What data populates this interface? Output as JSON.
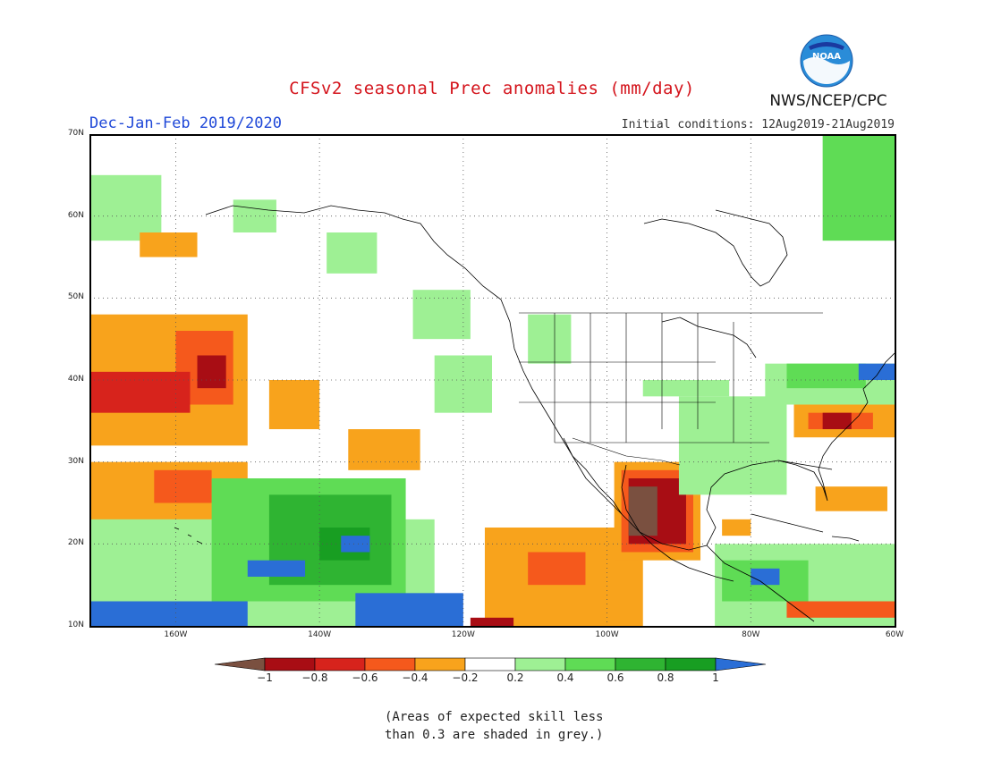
{
  "header": {
    "title": "CFSv2 seasonal Prec anomalies (mm/day)",
    "season": "Dec-Jan-Feb 2019/2020",
    "initial_conditions": "Initial conditions: 12Aug2019-21Aug2019",
    "agency": "NWS/NCEP/CPC",
    "logo_text": "NOAA"
  },
  "map": {
    "lat_range": [
      10,
      70
    ],
    "lon_range": [
      -172,
      -60
    ],
    "lat_labels": [
      "70N",
      "60N",
      "50N",
      "40N",
      "30N",
      "20N",
      "10N"
    ],
    "lon_labels": [
      "160W",
      "140W",
      "120W",
      "100W",
      "80W",
      "60W"
    ],
    "colors": {
      "lt_-1": "#7a5040",
      "-1_-0.8": "#a80d14",
      "-0.8_-0.6": "#d7231c",
      "-0.6_-0.4": "#f5591c",
      "-0.4_-0.2": "#f8a31c",
      "0.2_0.4": "#9ef094",
      "0.4_0.6": "#5fdc55",
      "0.6_0.8": "#2fb432",
      "0.8_1": "#189e22",
      "gt_1": "#2a6ed6"
    },
    "anomaly_regions": [
      {
        "category": "0.2_0.4",
        "lons": [
          -172,
          -162
        ],
        "lats": [
          57,
          65
        ]
      },
      {
        "category": "0.2_0.4",
        "lons": [
          -152,
          -146
        ],
        "lats": [
          58,
          62
        ]
      },
      {
        "category": "0.2_0.4",
        "lons": [
          -139,
          -132
        ],
        "lats": [
          53,
          58
        ]
      },
      {
        "category": "0.2_0.4",
        "lons": [
          -127,
          -119
        ],
        "lats": [
          45,
          51
        ]
      },
      {
        "category": "0.2_0.4",
        "lons": [
          -124,
          -116
        ],
        "lats": [
          36,
          43
        ]
      },
      {
        "category": "0.2_0.4",
        "lons": [
          -111,
          -105
        ],
        "lats": [
          42,
          48
        ]
      },
      {
        "category": "-0.4_-0.2",
        "lons": [
          -165,
          -157
        ],
        "lats": [
          55,
          58
        ]
      },
      {
        "category": "-0.4_-0.2",
        "lons": [
          -172,
          -150
        ],
        "lats": [
          32,
          48
        ]
      },
      {
        "category": "-0.6_-0.4",
        "lons": [
          -160,
          -152
        ],
        "lats": [
          37,
          46
        ]
      },
      {
        "category": "-0.8_-0.6",
        "lons": [
          -172,
          -158
        ],
        "lats": [
          36,
          41
        ]
      },
      {
        "category": "-1_-0.8",
        "lons": [
          -157,
          -153
        ],
        "lats": [
          39,
          43
        ]
      },
      {
        "category": "-0.4_-0.2",
        "lons": [
          -147,
          -140
        ],
        "lats": [
          34,
          40
        ]
      },
      {
        "category": "-0.4_-0.2",
        "lons": [
          -136,
          -126
        ],
        "lats": [
          29,
          34
        ]
      },
      {
        "category": "-0.4_-0.2",
        "lons": [
          -172,
          -150
        ],
        "lats": [
          21,
          30
        ]
      },
      {
        "category": "-0.6_-0.4",
        "lons": [
          -163,
          -155
        ],
        "lats": [
          25,
          29
        ]
      },
      {
        "category": "0.2_0.4",
        "lons": [
          -172,
          -124
        ],
        "lats": [
          10,
          23
        ]
      },
      {
        "category": "0.4_0.6",
        "lons": [
          -155,
          -128
        ],
        "lats": [
          13,
          28
        ]
      },
      {
        "category": "0.6_0.8",
        "lons": [
          -147,
          -130
        ],
        "lats": [
          15,
          26
        ]
      },
      {
        "category": "0.8_1",
        "lons": [
          -140,
          -133
        ],
        "lats": [
          18,
          22
        ]
      },
      {
        "category": "gt_1",
        "lons": [
          -137,
          -133
        ],
        "lats": [
          19,
          21
        ]
      },
      {
        "category": "gt_1",
        "lons": [
          -172,
          -150
        ],
        "lats": [
          10,
          13
        ]
      },
      {
        "category": "gt_1",
        "lons": [
          -135,
          -120
        ],
        "lats": [
          10,
          14
        ]
      },
      {
        "category": "gt_1",
        "lons": [
          -150,
          -142
        ],
        "lats": [
          16,
          18
        ]
      },
      {
        "category": "-0.4_-0.2",
        "lons": [
          -117,
          -95
        ],
        "lats": [
          10,
          22
        ]
      },
      {
        "category": "-0.6_-0.4",
        "lons": [
          -111,
          -103
        ],
        "lats": [
          15,
          19
        ]
      },
      {
        "category": "-1_-0.8",
        "lons": [
          -119,
          -113
        ],
        "lats": [
          10,
          11
        ]
      },
      {
        "category": "-0.4_-0.2",
        "lons": [
          -99,
          -87
        ],
        "lats": [
          18,
          30
        ]
      },
      {
        "category": "-0.6_-0.4",
        "lons": [
          -98,
          -88
        ],
        "lats": [
          19,
          29
        ]
      },
      {
        "category": "-1_-0.8",
        "lons": [
          -97,
          -89
        ],
        "lats": [
          20,
          28
        ]
      },
      {
        "category": "lt_-1",
        "lons": [
          -97,
          -93
        ],
        "lats": [
          21,
          27
        ]
      },
      {
        "category": "0.2_0.4",
        "lons": [
          -95,
          -83
        ],
        "lats": [
          38,
          40
        ]
      },
      {
        "category": "0.2_0.4",
        "lons": [
          -90,
          -75
        ],
        "lats": [
          26,
          38
        ]
      },
      {
        "category": "0.2_0.4",
        "lons": [
          -85,
          -60
        ],
        "lats": [
          10,
          20
        ]
      },
      {
        "category": "0.4_0.6",
        "lons": [
          -84,
          -72
        ],
        "lats": [
          13,
          18
        ]
      },
      {
        "category": "gt_1",
        "lons": [
          -80,
          -76
        ],
        "lats": [
          15,
          17
        ]
      },
      {
        "category": "0.2_0.4",
        "lons": [
          -78,
          -60
        ],
        "lats": [
          37,
          42
        ]
      },
      {
        "category": "0.4_0.6",
        "lons": [
          -75,
          -64
        ],
        "lats": [
          39,
          42
        ]
      },
      {
        "category": "gt_1",
        "lons": [
          -65,
          -60
        ],
        "lats": [
          40,
          42
        ]
      },
      {
        "category": "-0.4_-0.2",
        "lons": [
          -74,
          -60
        ],
        "lats": [
          33,
          37
        ]
      },
      {
        "category": "-0.6_-0.4",
        "lons": [
          -72,
          -63
        ],
        "lats": [
          34,
          36
        ]
      },
      {
        "category": "-1_-0.8",
        "lons": [
          -70,
          -66
        ],
        "lats": [
          34,
          36
        ]
      },
      {
        "category": "-0.4_-0.2",
        "lons": [
          -71,
          -61
        ],
        "lats": [
          24,
          27
        ]
      },
      {
        "category": "-0.4_-0.2",
        "lons": [
          -84,
          -80
        ],
        "lats": [
          21,
          23
        ]
      },
      {
        "category": "-0.6_-0.4",
        "lons": [
          -75,
          -60
        ],
        "lats": [
          11,
          13
        ]
      },
      {
        "category": "0.4_0.6",
        "lons": [
          -70,
          -60
        ],
        "lats": [
          57,
          70
        ]
      }
    ]
  },
  "colorbar": {
    "colors": [
      "#7a5040",
      "#a80d14",
      "#d7231c",
      "#f5591c",
      "#f8a31c",
      "#ffffff",
      "#9ef094",
      "#5fdc55",
      "#2fb432",
      "#189e22",
      "#2a6ed6"
    ],
    "ticks": [
      "−1",
      "−0.8",
      "−0.6",
      "−0.4",
      "−0.2",
      "0.2",
      "0.4",
      "0.6",
      "0.8",
      "1"
    ]
  },
  "footnote": {
    "line1": "(Areas of expected skill less",
    "line2": "than 0.3 are shaded in grey.)"
  }
}
